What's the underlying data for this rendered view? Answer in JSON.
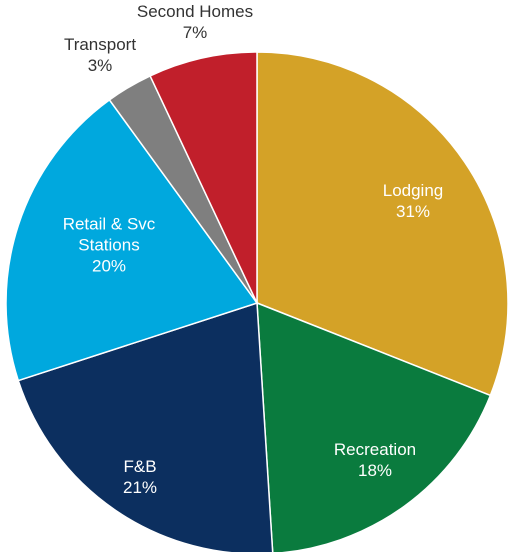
{
  "chart_data": {
    "type": "pie",
    "categories": [
      "Lodging",
      "Recreation",
      "F&B",
      "Retail & Svc Stations",
      "Transport",
      "Second Homes"
    ],
    "values": [
      31,
      18,
      21,
      20,
      3,
      7
    ],
    "value_labels": [
      "31%",
      "18%",
      "21%",
      "20%",
      "3%",
      "7%"
    ],
    "colors": [
      "#d4a227",
      "#0a7b3e",
      "#0c2f5f",
      "#00a8de",
      "#7f7f7f",
      "#c11f2b"
    ]
  }
}
